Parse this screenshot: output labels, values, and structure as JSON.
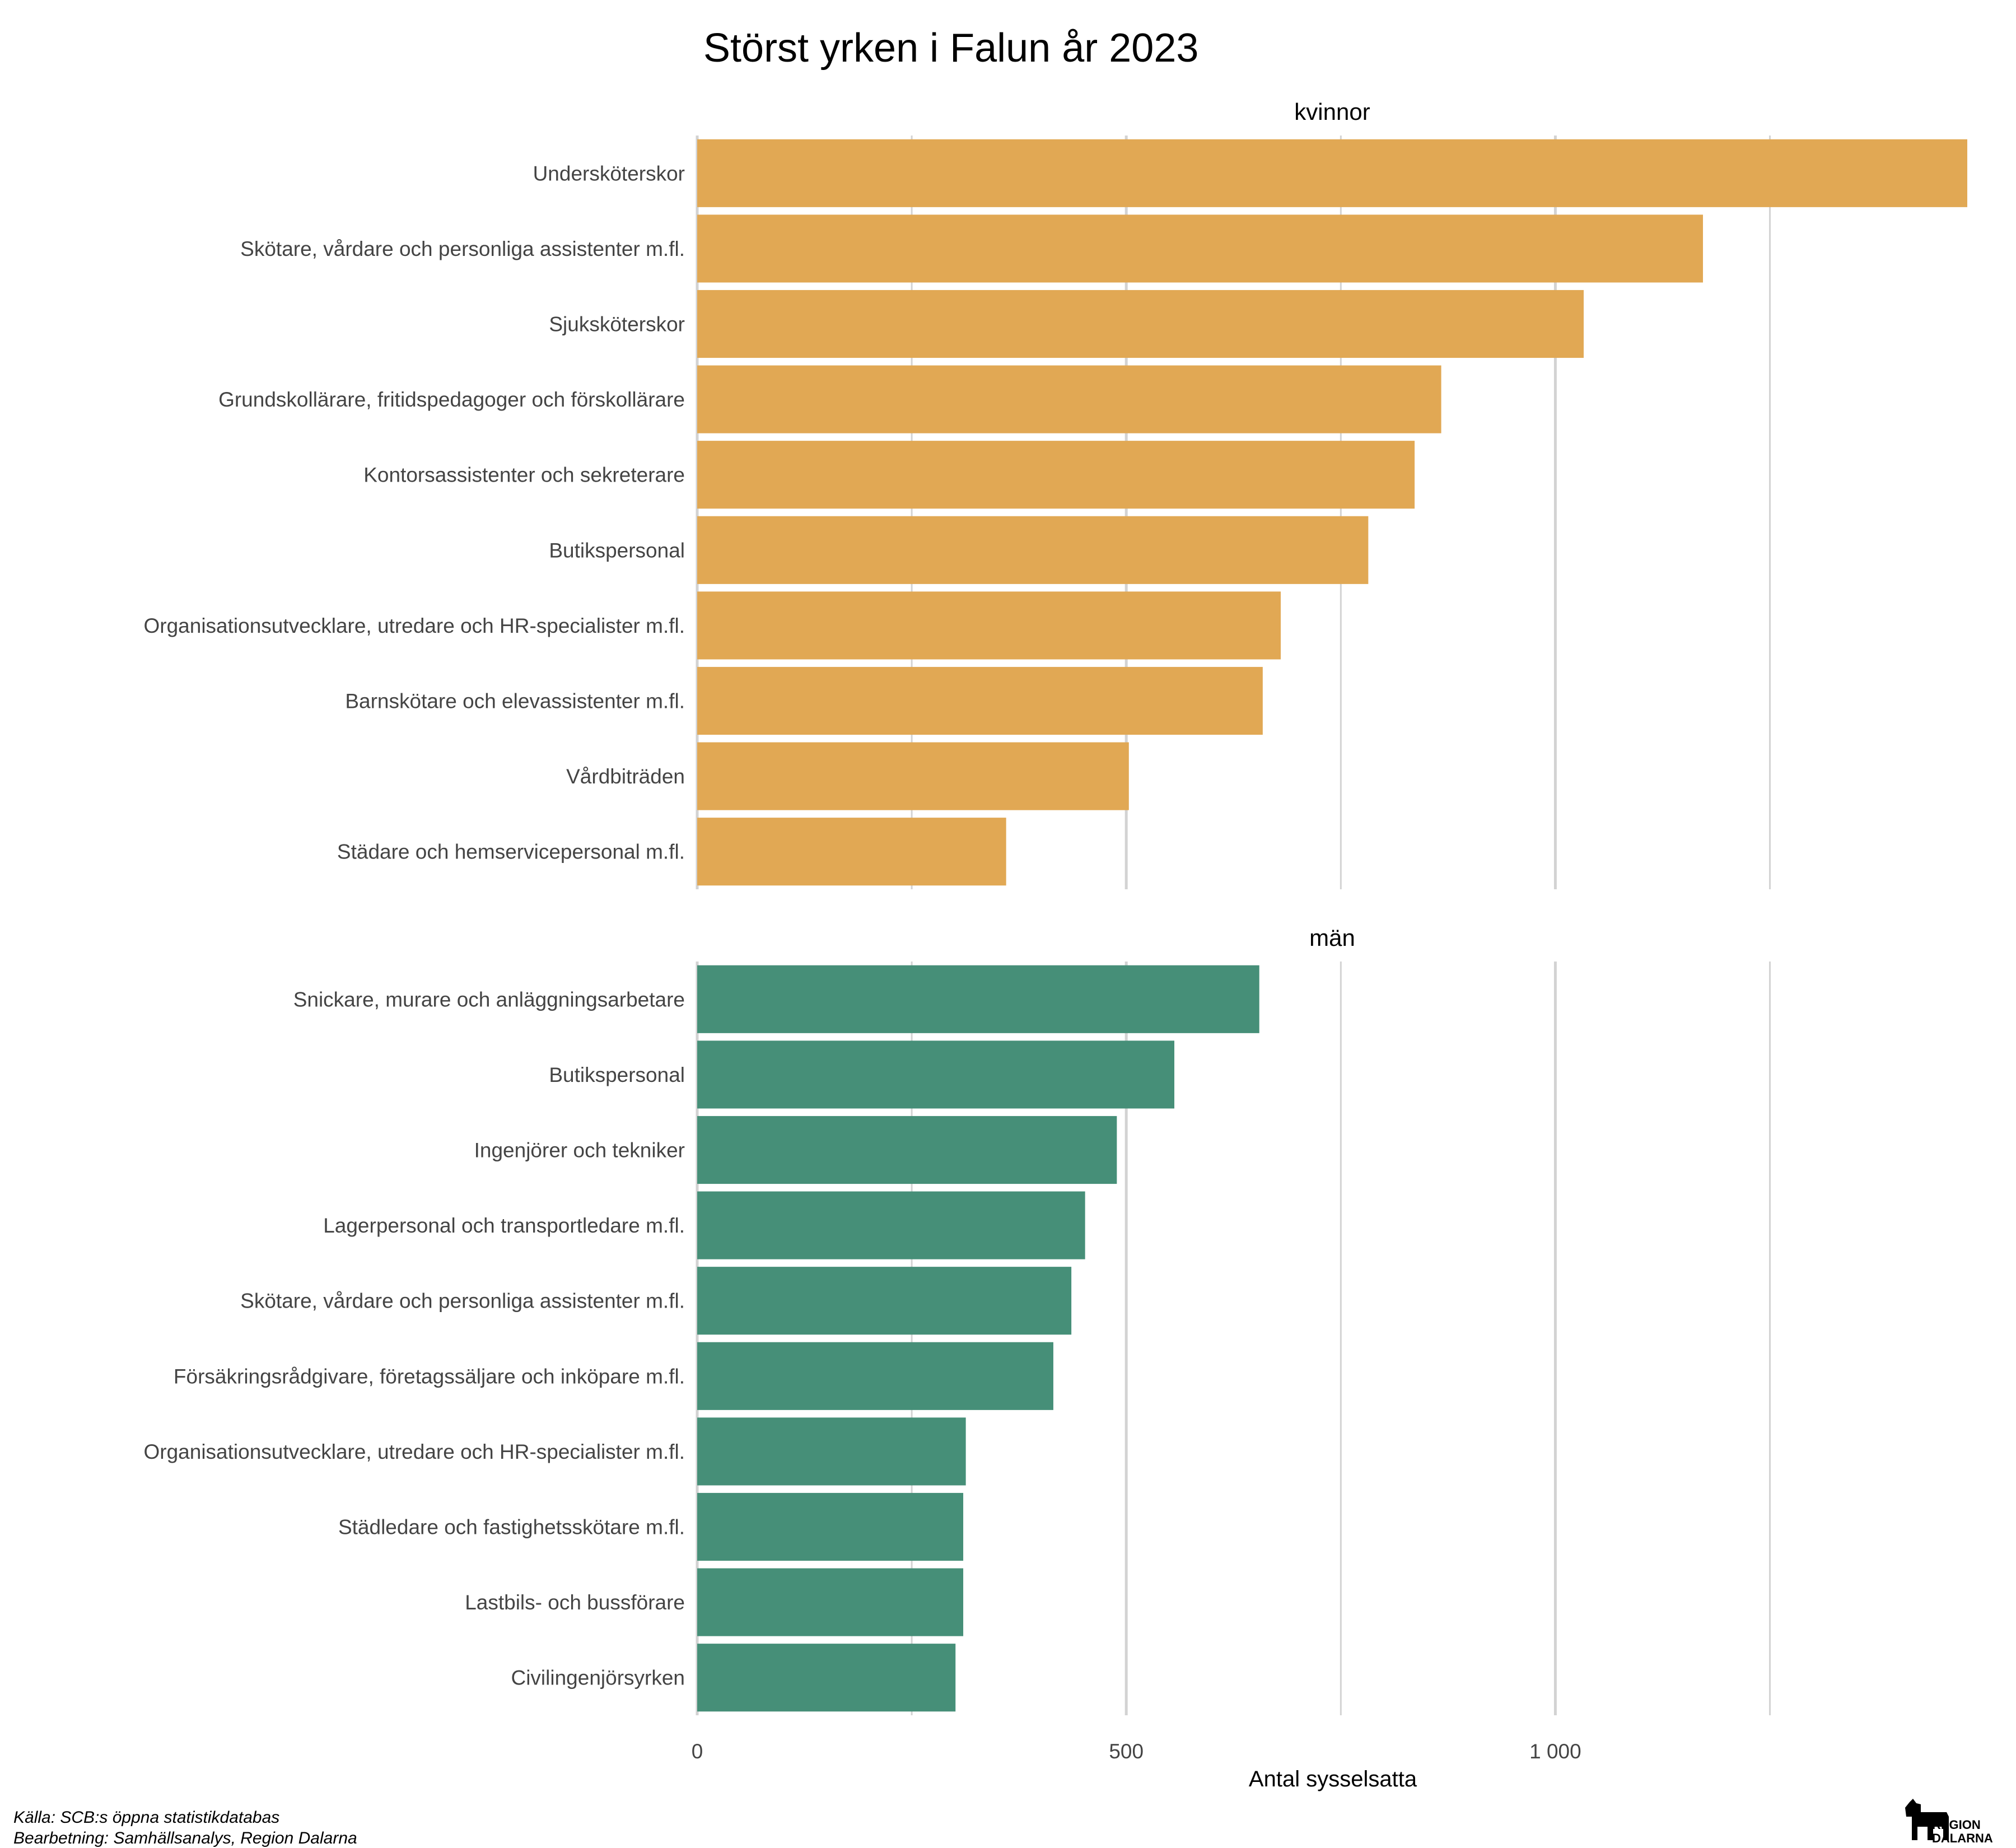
{
  "chart_data": {
    "type": "bar",
    "orientation": "horizontal",
    "title": "Störst yrken i Falun år 2023",
    "xlabel": "Antal sysselsatta",
    "xlim": [
      0,
      1480
    ],
    "x_ticks": [
      0,
      500,
      1000
    ],
    "x_tick_labels": [
      "0",
      "500",
      "1 000"
    ],
    "grid": true,
    "panels": [
      {
        "name": "kvinnor",
        "color": "#E1A854",
        "categories": [
          "Undersköterskor",
          "Skötare, vårdare och personliga assistenter m.fl.",
          "Sjuksköterskor",
          "Grundskollärare, fritidspedagoger och förskollärare",
          "Kontorsassistenter och sekreterare",
          "Butikspersonal",
          "Organisationsutvecklare, utredare och HR-specialister m.fl.",
          "Barnskötare och elevassistenter m.fl.",
          "Vårdbiträden",
          "Städare och hemservicepersonal m.fl."
        ],
        "values": [
          1480,
          1172,
          1033,
          867,
          836,
          782,
          680,
          659,
          503,
          360
        ]
      },
      {
        "name": "män",
        "color": "#468F78",
        "categories": [
          "Snickare, murare och anläggningsarbetare",
          "Butikspersonal",
          "Ingenjörer och tekniker",
          "Lagerpersonal och transportledare m.fl.",
          "Skötare, vårdare och personliga assistenter m.fl.",
          "Försäkringsrådgivare, företagssäljare och inköpare m.fl.",
          "Organisationsutvecklare, utredare och HR-specialister m.fl.",
          "Städledare och fastighetsskötare m.fl.",
          "Lastbils- och bussförare",
          "Civilingenjörsyrken"
        ],
        "values": [
          655,
          556,
          489,
          452,
          436,
          415,
          313,
          310,
          310,
          301
        ]
      }
    ]
  },
  "footer": {
    "source": "Källa: SCB:s öppna statistikdatabas",
    "processing": "Bearbetning: Samhällsanalys, Region Dalarna"
  },
  "logo": {
    "line1": "REGION",
    "line2": "DALARNA"
  }
}
